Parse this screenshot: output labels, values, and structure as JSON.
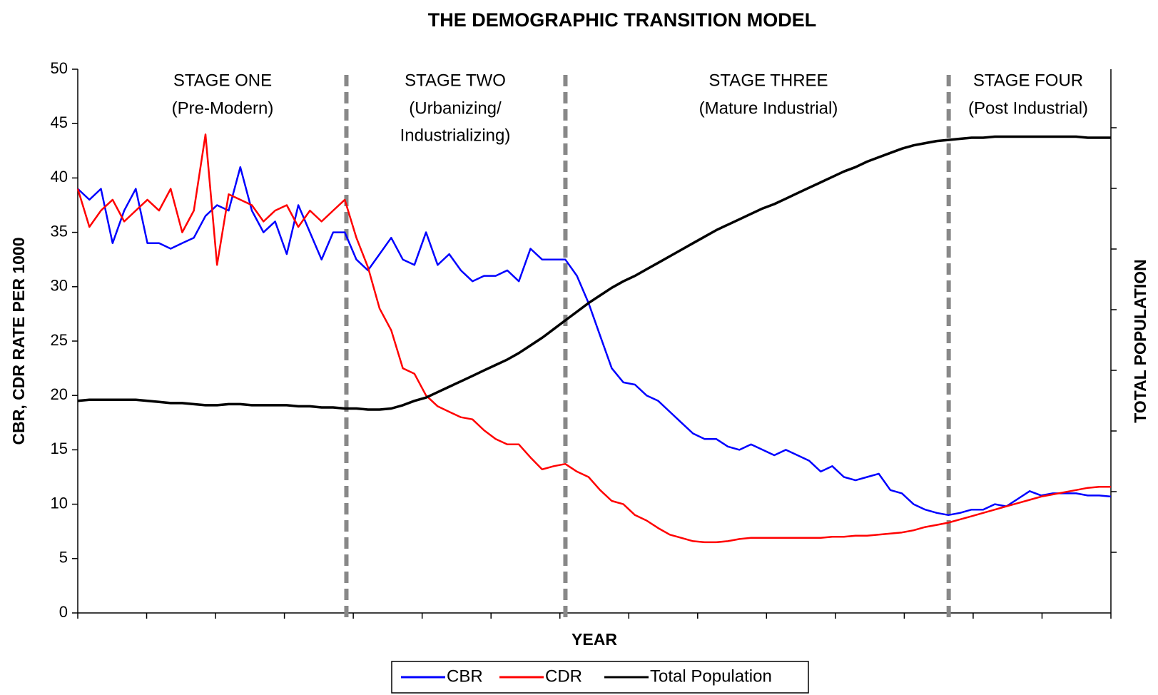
{
  "chart_data": {
    "type": "line",
    "title": "THE DEMOGRAPHIC TRANSITION MODEL",
    "ylabel": "CBR, CDR RATE PER 1000",
    "y2label": "TOTAL POPULATION",
    "xlabel": "YEAR",
    "ylim": [
      0,
      50
    ],
    "yticks": [
      0,
      5,
      10,
      15,
      20,
      25,
      30,
      35,
      40,
      45,
      50
    ],
    "legend": "bottom",
    "stages": [
      {
        "name": "STAGE ONE",
        "lines": [
          "(Pre-Modern)"
        ]
      },
      {
        "name": "STAGE TWO",
        "lines": [
          "(Urbanizing/",
          "Industrializing)"
        ]
      },
      {
        "name": "STAGE THREE",
        "lines": [
          "(Mature Industrial)"
        ]
      },
      {
        "name": "STAGE FOUR",
        "lines": [
          "(Post Industrial)"
        ]
      }
    ],
    "series": [
      {
        "name": "CBR",
        "color": "#0000ff",
        "values": [
          39,
          38,
          39,
          34,
          37,
          39,
          34,
          34,
          33.5,
          34,
          34.5,
          36.5,
          37.5,
          37,
          41,
          37,
          35,
          36,
          33,
          37.5,
          35,
          32.5,
          35,
          35,
          32.5,
          31.5,
          33,
          34.5,
          32.5,
          32,
          35,
          32,
          33,
          31.5,
          30.5,
          31,
          31,
          31.5,
          30.5,
          33.5,
          32.5,
          32.5,
          32.5,
          31,
          28.5,
          25.5,
          22.5,
          21.2,
          21,
          20,
          19.5,
          18.5,
          17.5,
          16.5,
          16,
          16,
          15.3,
          15,
          15.5,
          15,
          14.5,
          15,
          14.5,
          14,
          13,
          13.5,
          12.5,
          12.2,
          12.5,
          12.8,
          11.3,
          11,
          10,
          9.5,
          9.2,
          9,
          9.2,
          9.5,
          9.5,
          10,
          9.8,
          10.5,
          11.2,
          10.8,
          11,
          11,
          11,
          10.8,
          10.8,
          10.7
        ]
      },
      {
        "name": "CDR",
        "color": "#ff0000",
        "values": [
          39,
          35.5,
          37,
          38,
          36,
          37,
          38,
          37,
          39,
          35,
          37,
          44,
          32,
          38.5,
          38,
          37.5,
          36,
          37,
          37.5,
          35.5,
          37,
          36,
          37,
          38,
          34.5,
          31.8,
          28,
          26,
          22.5,
          22,
          20,
          19,
          18.5,
          18,
          17.8,
          16.8,
          16,
          15.5,
          15.5,
          14.3,
          13.2,
          13.5,
          13.7,
          13,
          12.5,
          11.3,
          10.3,
          10,
          9,
          8.5,
          7.8,
          7.2,
          6.9,
          6.6,
          6.5,
          6.5,
          6.6,
          6.8,
          6.9,
          6.9,
          6.9,
          6.9,
          6.9,
          6.9,
          6.9,
          7,
          7,
          7.1,
          7.1,
          7.2,
          7.3,
          7.4,
          7.6,
          7.9,
          8.1,
          8.3,
          8.6,
          8.9,
          9.2,
          9.5,
          9.8,
          10.1,
          10.4,
          10.7,
          10.9,
          11.1,
          11.3,
          11.5,
          11.6,
          11.6
        ]
      },
      {
        "name": "Total Population",
        "color": "#000000",
        "values": [
          19.5,
          19.6,
          19.6,
          19.6,
          19.6,
          19.6,
          19.5,
          19.4,
          19.3,
          19.3,
          19.2,
          19.1,
          19.1,
          19.2,
          19.2,
          19.1,
          19.1,
          19.1,
          19.1,
          19.0,
          19.0,
          18.9,
          18.9,
          18.8,
          18.8,
          18.7,
          18.7,
          18.8,
          19.1,
          19.5,
          19.8,
          20.3,
          20.8,
          21.3,
          21.8,
          22.3,
          22.8,
          23.3,
          23.9,
          24.6,
          25.3,
          26.1,
          26.9,
          27.7,
          28.5,
          29.2,
          29.9,
          30.5,
          31.0,
          31.6,
          32.2,
          32.8,
          33.4,
          34.0,
          34.6,
          35.2,
          35.7,
          36.2,
          36.7,
          37.2,
          37.6,
          38.1,
          38.6,
          39.1,
          39.6,
          40.1,
          40.6,
          41.0,
          41.5,
          41.9,
          42.3,
          42.7,
          43.0,
          43.2,
          43.4,
          43.5,
          43.6,
          43.7,
          43.7,
          43.8,
          43.8,
          43.8,
          43.8,
          43.8,
          43.8,
          43.8,
          43.8,
          43.7,
          43.7,
          43.7
        ]
      }
    ]
  }
}
